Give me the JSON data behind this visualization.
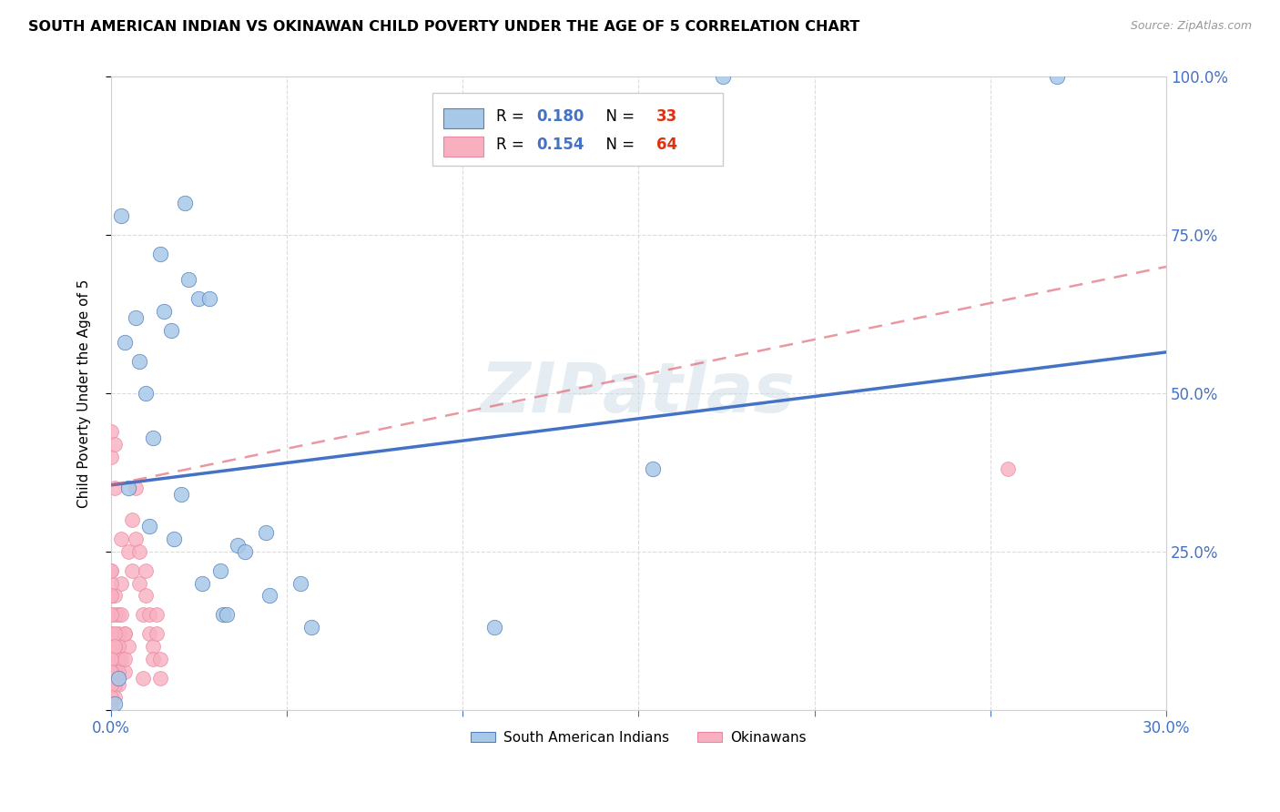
{
  "title": "SOUTH AMERICAN INDIAN VS OKINAWAN CHILD POVERTY UNDER THE AGE OF 5 CORRELATION CHART",
  "source": "Source: ZipAtlas.com",
  "ylabel": "Child Poverty Under the Age of 5",
  "xlim": [
    0.0,
    0.3
  ],
  "ylim": [
    0.0,
    1.0
  ],
  "blue_R": "0.180",
  "blue_N": "33",
  "pink_R": "0.154",
  "pink_N": "64",
  "blue_dot_color": "#a8c8e8",
  "blue_dot_edge": "#5580c0",
  "pink_dot_color": "#f8b0c0",
  "pink_dot_edge": "#e888a0",
  "blue_line_color": "#4472c4",
  "pink_line_color": "#e06070",
  "r_label_color": "#4472c4",
  "n_label_color": "#dd3311",
  "watermark_color": "#ccdde8",
  "blue_scatter_x": [
    0.001,
    0.014,
    0.003,
    0.022,
    0.004,
    0.01,
    0.017,
    0.005,
    0.012,
    0.007,
    0.025,
    0.008,
    0.015,
    0.028,
    0.044,
    0.054,
    0.011,
    0.018,
    0.031,
    0.057,
    0.036,
    0.021,
    0.032,
    0.045,
    0.02,
    0.038,
    0.026,
    0.033,
    0.109,
    0.154,
    0.174,
    0.002,
    0.269
  ],
  "blue_scatter_y": [
    0.01,
    0.72,
    0.78,
    0.68,
    0.58,
    0.5,
    0.6,
    0.35,
    0.43,
    0.62,
    0.65,
    0.55,
    0.63,
    0.65,
    0.28,
    0.2,
    0.29,
    0.27,
    0.22,
    0.13,
    0.26,
    0.8,
    0.15,
    0.18,
    0.34,
    0.25,
    0.2,
    0.15,
    0.13,
    0.38,
    1.0,
    0.05,
    1.0
  ],
  "pink_scatter_x": [
    0.0,
    0.0,
    0.001,
    0.001,
    0.002,
    0.002,
    0.003,
    0.003,
    0.004,
    0.004,
    0.005,
    0.005,
    0.006,
    0.006,
    0.007,
    0.007,
    0.008,
    0.008,
    0.009,
    0.009,
    0.01,
    0.01,
    0.011,
    0.011,
    0.012,
    0.012,
    0.013,
    0.013,
    0.014,
    0.014,
    0.0,
    0.0,
    0.001,
    0.001,
    0.002,
    0.002,
    0.003,
    0.003,
    0.004,
    0.004,
    0.0,
    0.0,
    0.001,
    0.001,
    0.002,
    0.002,
    0.0,
    0.0,
    0.001,
    0.001,
    0.0,
    0.0,
    0.001,
    0.001,
    0.0,
    0.0,
    0.0,
    0.0,
    0.0,
    0.0,
    0.0,
    0.0,
    0.255,
    0.0
  ],
  "pink_scatter_y": [
    0.44,
    0.4,
    0.42,
    0.35,
    0.08,
    0.15,
    0.27,
    0.2,
    0.06,
    0.12,
    0.1,
    0.25,
    0.22,
    0.3,
    0.35,
    0.27,
    0.25,
    0.2,
    0.15,
    0.05,
    0.22,
    0.18,
    0.15,
    0.12,
    0.1,
    0.08,
    0.15,
    0.12,
    0.08,
    0.05,
    0.18,
    0.22,
    0.18,
    0.15,
    0.12,
    0.1,
    0.08,
    0.15,
    0.12,
    0.08,
    0.12,
    0.1,
    0.06,
    0.1,
    0.06,
    0.04,
    0.06,
    0.04,
    0.04,
    0.02,
    0.2,
    0.18,
    0.12,
    0.1,
    0.15,
    0.08,
    0.06,
    0.04,
    0.02,
    0.01,
    0.0,
    0.0,
    0.38,
    0.22
  ],
  "blue_trend_x0": 0.0,
  "blue_trend_y0": 0.355,
  "blue_trend_x1": 0.3,
  "blue_trend_y1": 0.565,
  "pink_trend_x0": 0.0,
  "pink_trend_y0": 0.355,
  "pink_trend_x1": 0.3,
  "pink_trend_y1": 0.7
}
